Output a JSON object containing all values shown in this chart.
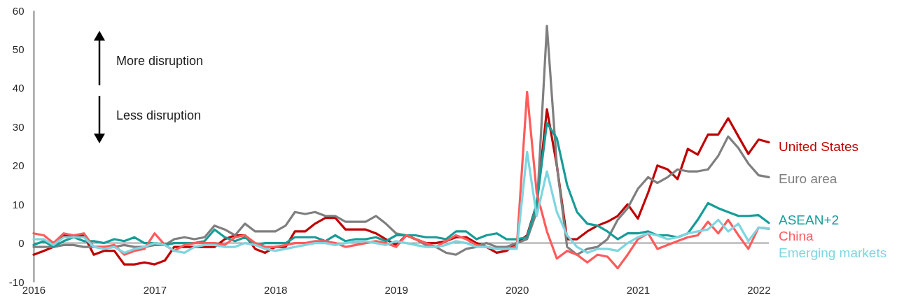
{
  "chart_data": {
    "type": "line",
    "annotations": [
      "More disruption",
      "Less disruption"
    ],
    "x": [
      "2016-01",
      "2016-02",
      "2016-03",
      "2016-04",
      "2016-05",
      "2016-06",
      "2016-07",
      "2016-08",
      "2016-09",
      "2016-10",
      "2016-11",
      "2016-12",
      "2017-01",
      "2017-02",
      "2017-03",
      "2017-04",
      "2017-05",
      "2017-06",
      "2017-07",
      "2017-08",
      "2017-09",
      "2017-10",
      "2017-11",
      "2017-12",
      "2018-01",
      "2018-02",
      "2018-03",
      "2018-04",
      "2018-05",
      "2018-06",
      "2018-07",
      "2018-08",
      "2018-09",
      "2018-10",
      "2018-11",
      "2018-12",
      "2019-01",
      "2019-02",
      "2019-03",
      "2019-04",
      "2019-05",
      "2019-06",
      "2019-07",
      "2019-08",
      "2019-09",
      "2019-10",
      "2019-11",
      "2019-12",
      "2020-01",
      "2020-02",
      "2020-03",
      "2020-04",
      "2020-05",
      "2020-06",
      "2020-07",
      "2020-08",
      "2020-09",
      "2020-10",
      "2020-11",
      "2020-12",
      "2021-01",
      "2021-02",
      "2021-03",
      "2021-04",
      "2021-05",
      "2021-06",
      "2021-07",
      "2021-08",
      "2021-09",
      "2021-10",
      "2021-11",
      "2021-12",
      "2022-01",
      "2022-02"
    ],
    "series": [
      {
        "name": "United States",
        "color": "#c00000",
        "values": [
          -3,
          -2,
          -1,
          2,
          2,
          2,
          -3,
          -2,
          -2,
          -5.5,
          -5.5,
          -5,
          -5.5,
          -4.5,
          -1,
          -1,
          -1,
          -1,
          -1,
          1,
          2,
          2,
          -1.5,
          -2.5,
          -1,
          -1,
          3,
          3,
          5,
          6.5,
          6.5,
          3.5,
          3.5,
          3.5,
          2.5,
          1,
          -0.5,
          2,
          1,
          0,
          0,
          0.5,
          1.5,
          1.5,
          0,
          -1,
          -2.5,
          -2,
          0,
          2,
          10,
          34.5,
          20,
          1,
          1,
          3,
          4.5,
          5.5,
          7,
          10,
          6.3,
          13,
          20,
          19,
          16.5,
          24.3,
          22.8,
          28,
          28,
          32.2,
          27.5,
          23,
          26.7,
          26
        ]
      },
      {
        "name": "Euro area",
        "color": "#7f7f7f",
        "values": [
          -1,
          -1,
          -1,
          -0.5,
          -0.5,
          -1,
          -1,
          -1,
          -1,
          -0.5,
          -1,
          -1,
          -0.5,
          -0.5,
          1,
          1.5,
          1,
          1.5,
          4.5,
          3.5,
          2,
          5,
          3,
          3,
          3,
          4.5,
          8,
          7.5,
          8,
          7,
          7,
          5.5,
          5.5,
          5.5,
          7,
          5,
          2.5,
          2,
          1,
          -0.5,
          -1,
          -2.5,
          -3,
          -1.5,
          -1,
          0,
          -1,
          -1,
          0,
          1,
          8,
          56,
          20,
          -1,
          -3,
          -1.5,
          -1,
          1,
          6,
          9,
          14,
          17,
          15.5,
          17,
          19,
          18.5,
          18.5,
          19,
          22.5,
          27.5,
          24.5,
          20.5,
          17.5,
          17
        ]
      },
      {
        "name": "ASEAN+2",
        "color": "#179c98",
        "values": [
          -0.5,
          0.5,
          -1,
          0.5,
          1.5,
          0.5,
          0.5,
          0,
          1,
          0.5,
          1.5,
          0,
          0,
          -0.5,
          0,
          0,
          0,
          0.5,
          3.5,
          1.5,
          0.5,
          1.5,
          -0.5,
          0,
          0,
          0,
          1.5,
          1.5,
          1.5,
          0.5,
          2,
          0.5,
          1,
          1,
          1.5,
          0.5,
          2,
          2,
          2,
          1.5,
          1.5,
          1,
          3,
          3,
          1,
          2,
          2.5,
          1,
          1,
          1.5,
          10,
          31,
          27,
          15,
          8,
          5,
          4.5,
          3,
          1,
          2.5,
          2.5,
          3,
          2,
          2,
          1.5,
          2.5,
          6,
          10.3,
          9,
          8,
          7,
          7,
          7.2,
          5.2
        ]
      },
      {
        "name": "China",
        "color": "#ff5b5b",
        "values": [
          2.5,
          2,
          0,
          2.5,
          2,
          2.5,
          -1,
          -1,
          -0.5,
          -3,
          -2,
          -1.5,
          2.5,
          -0.5,
          -2,
          -0.5,
          0,
          0,
          0,
          -0.5,
          1.5,
          2,
          0,
          -1,
          -1,
          -0.5,
          0,
          0,
          0.5,
          0.5,
          0,
          -1,
          -0.5,
          0,
          0.5,
          0,
          -1,
          2,
          1,
          0,
          -1,
          0.5,
          2,
          1,
          -0.5,
          -1,
          -1.5,
          -1.5,
          -1,
          39,
          13,
          3,
          -4,
          -2,
          -3,
          -5,
          -3,
          -3.5,
          -6.5,
          -3,
          1,
          2.5,
          -1.5,
          -0.5,
          0.5,
          1.5,
          2,
          5.5,
          2.5,
          6,
          2,
          -1.5,
          4,
          3.7
        ]
      },
      {
        "name": "Emerging markets",
        "color": "#7dd6e0",
        "values": [
          1,
          1,
          -0.5,
          1.5,
          1.5,
          1.5,
          -1,
          -1.5,
          -1,
          -2.5,
          -1.5,
          -1,
          0,
          -0.5,
          -2,
          -2.5,
          -1,
          -0.5,
          -0.5,
          -1,
          -1,
          0,
          -0.5,
          -1.5,
          -2,
          -1.5,
          -1,
          -0.5,
          0,
          0,
          -0.5,
          0,
          0.5,
          0.5,
          0,
          -0.5,
          0.5,
          0,
          -0.5,
          -1,
          -1,
          -0.5,
          0.5,
          0,
          -1,
          -1,
          -1.5,
          -1.5,
          -1.5,
          23.5,
          7,
          18.5,
          8,
          2,
          -1,
          -2.5,
          -1.5,
          -1.5,
          -2,
          0,
          1.5,
          2.5,
          2,
          1,
          1.5,
          2.5,
          3,
          3.5,
          6,
          3,
          5,
          0.5,
          4,
          3.8
        ]
      }
    ],
    "xlim": [
      "2016-01",
      "2022-02"
    ],
    "xticks": [
      {
        "value": "2016-01",
        "label": "2016"
      },
      {
        "value": "2017-01",
        "label": "2017"
      },
      {
        "value": "2018-01",
        "label": "2018"
      },
      {
        "value": "2019-01",
        "label": "2019"
      },
      {
        "value": "2020-01",
        "label": "2020"
      },
      {
        "value": "2021-01",
        "label": "2021"
      },
      {
        "value": "2022-01",
        "label": "2022"
      }
    ],
    "ylim": [
      -10,
      60
    ],
    "yticks": [
      -10,
      0,
      10,
      20,
      30,
      40,
      50,
      60
    ],
    "ref_lines": [
      {
        "axis": "y",
        "value": 0,
        "color": "#7f7f7f"
      }
    ],
    "grid": false,
    "line_style": "solid",
    "marker": "none"
  }
}
